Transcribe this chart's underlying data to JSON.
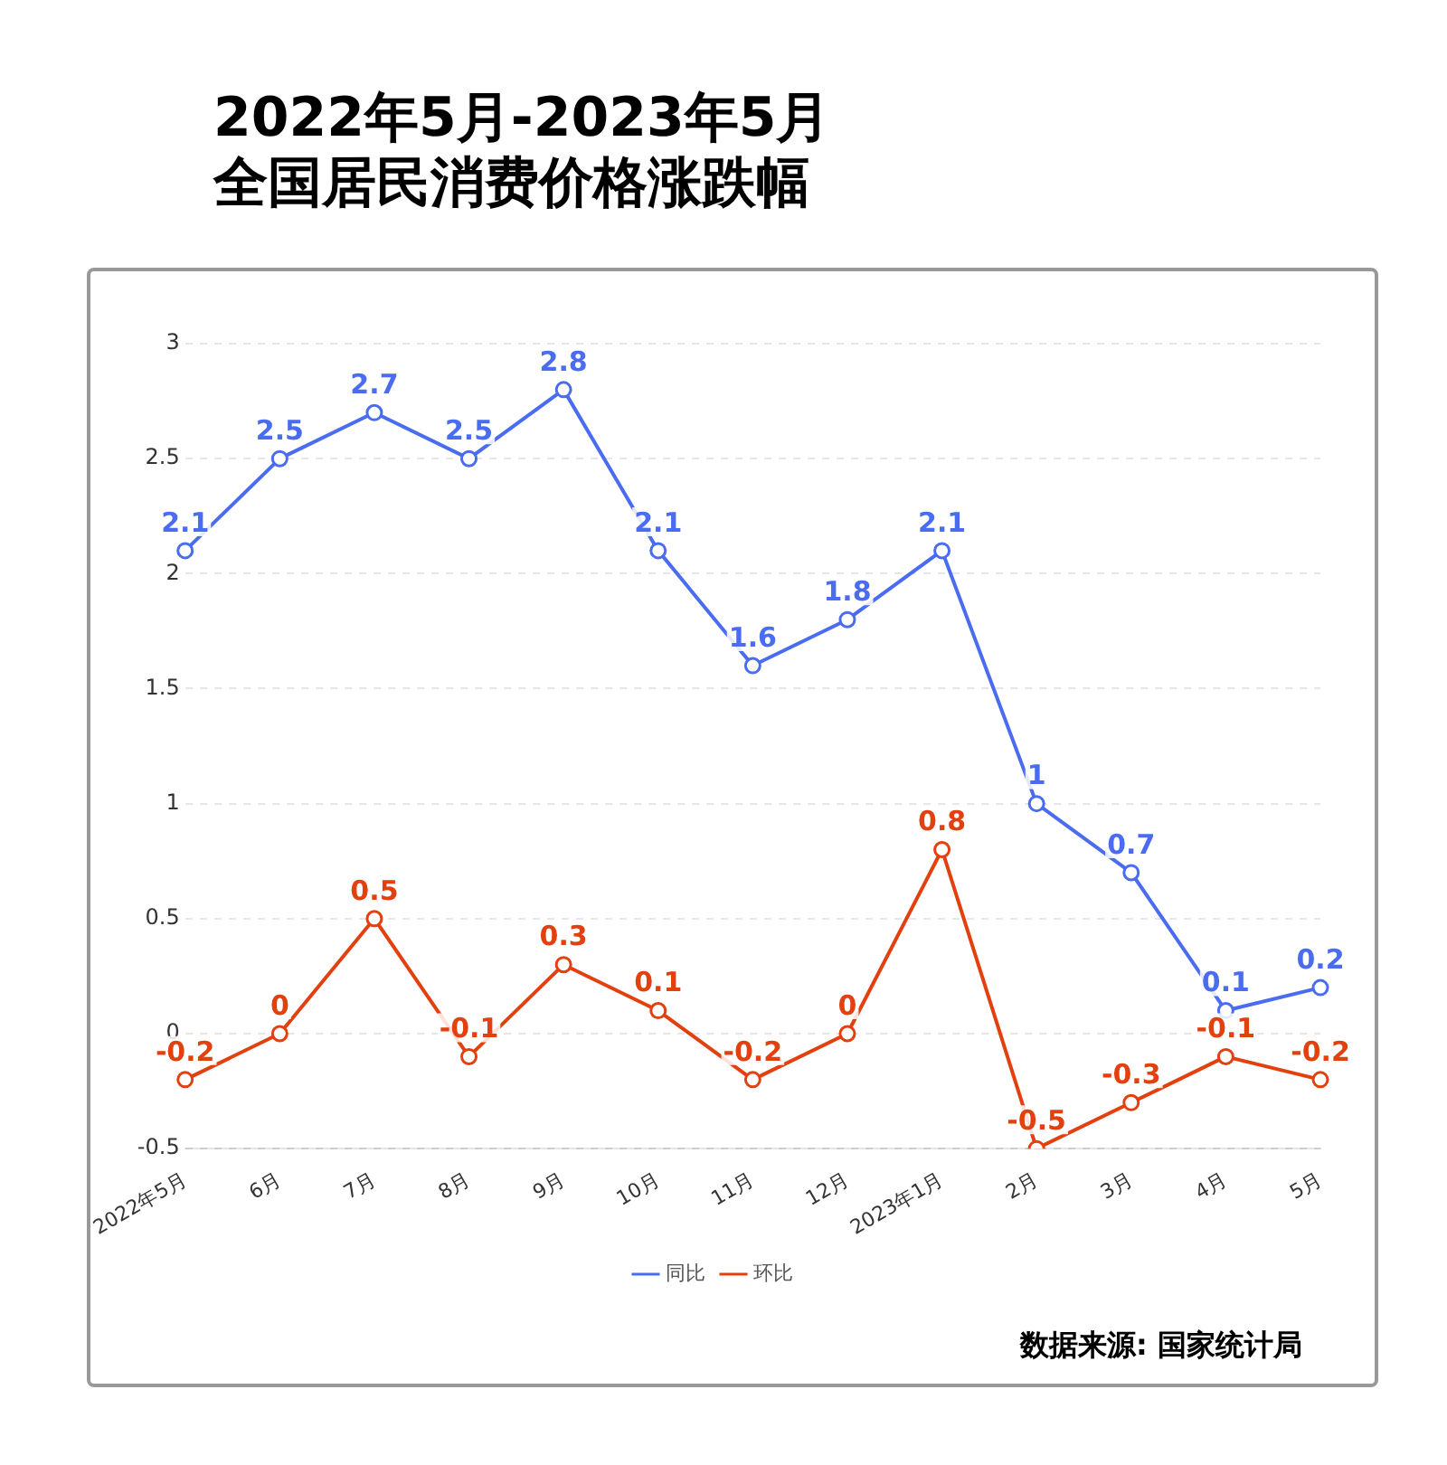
{
  "chart_data": {
    "type": "line",
    "title": "2022年5月-2023年5月",
    "subtitle": "全国居民消费价格涨跌幅",
    "categories": [
      "2022年5月",
      "6月",
      "7月",
      "8月",
      "9月",
      "10月",
      "11月",
      "12月",
      "2023年1月",
      "2月",
      "3月",
      "4月",
      "5月"
    ],
    "series": [
      {
        "name": "同比",
        "color": "#4a6cf0",
        "values": [
          2.1,
          2.5,
          2.7,
          2.5,
          2.8,
          2.1,
          1.6,
          1.8,
          2.1,
          1,
          0.7,
          0.1,
          0.2
        ]
      },
      {
        "name": "环比",
        "color": "#e3400f",
        "values": [
          -0.2,
          0,
          0.5,
          -0.1,
          0.3,
          0.1,
          -0.2,
          0,
          0.8,
          -0.5,
          -0.3,
          -0.1,
          -0.2
        ]
      }
    ],
    "ylim": [
      -0.5,
      3
    ],
    "yticks": [
      -0.5,
      0,
      0.5,
      1,
      1.5,
      2,
      2.5,
      3
    ],
    "grid": "y",
    "legend": "bottom",
    "marker": "circle",
    "line_style": "solid",
    "data_labels": true,
    "annotations": [
      "数据来源: 国家统计局"
    ]
  }
}
